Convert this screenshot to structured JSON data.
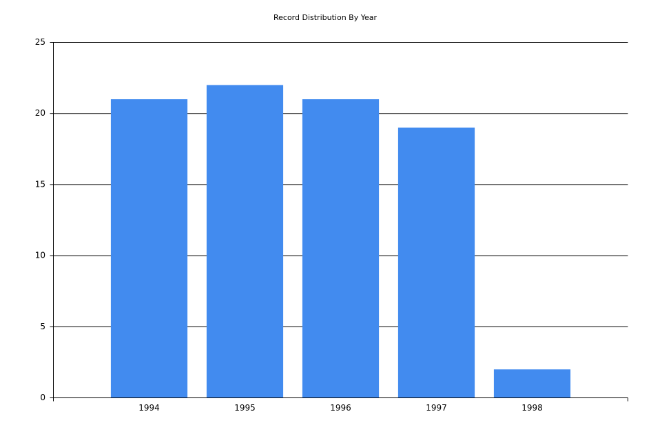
{
  "chart_data": {
    "type": "bar",
    "title": "Record Distribution By Year",
    "categories": [
      "1994",
      "1995",
      "1996",
      "1997",
      "1998"
    ],
    "values": [
      21,
      22,
      21,
      19,
      2
    ],
    "color": "#428bef",
    "ylim": [
      0,
      25
    ],
    "yticks": [
      0,
      5,
      10,
      15,
      20,
      25
    ],
    "grid": true
  }
}
